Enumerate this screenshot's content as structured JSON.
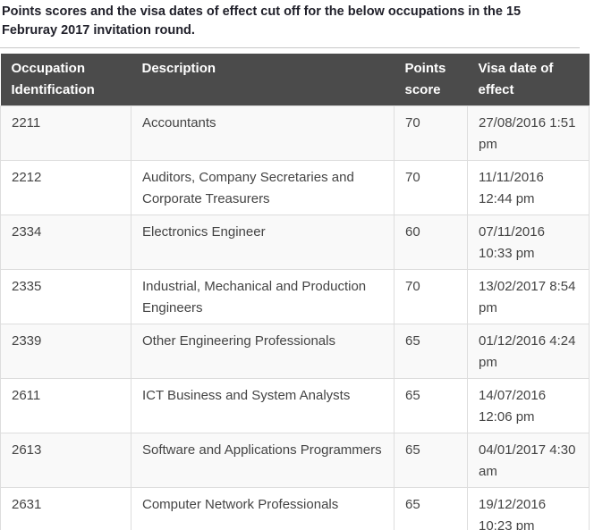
{
  "page": {
    "intro": "Points scores and the visa dates of effect cut off for the below occupations in the 15 Februray 2017 invitation round."
  },
  "table": {
    "columns": [
      {
        "label": "Occupation Identification"
      },
      {
        "label": "Description"
      },
      {
        "label": "Points score"
      },
      {
        "label": "Visa date of effect"
      }
    ],
    "rows": [
      {
        "occupation_id": "2211",
        "description": "Accountants",
        "points_score": "70",
        "visa_date_of_effect": "27/08/2016 1:51 pm"
      },
      {
        "occupation_id": "2212",
        "description": "Auditors, Company Secretaries and Corporate Treasurers",
        "points_score": "70",
        "visa_date_of_effect": "11/11/2016 12:44 pm"
      },
      {
        "occupation_id": "2334",
        "description": "Electronics Engineer",
        "points_score": "60",
        "visa_date_of_effect": "07/11/2016 10:33 pm"
      },
      {
        "occupation_id": "2335",
        "description": "Industrial, Mechanical and Production Engineers",
        "points_score": "70",
        "visa_date_of_effect": "13/02/2017 8:54 pm"
      },
      {
        "occupation_id": "2339",
        "description": "Other Engineering Professionals",
        "points_score": "65",
        "visa_date_of_effect": "01/12/2016 4:24 pm"
      },
      {
        "occupation_id": "2611",
        "description": "ICT Business and System Analysts",
        "points_score": "65",
        "visa_date_of_effect": "14/07/2016 12:06 pm"
      },
      {
        "occupation_id": "2613",
        "description": "Software and Applications Programmers",
        "points_score": "65",
        "visa_date_of_effect": "04/01/2017 4:30 am"
      },
      {
        "occupation_id": "2631",
        "description": "Computer Network Professionals",
        "points_score": "65",
        "visa_date_of_effect": "19/12/2016 10:23 pm"
      }
    ]
  },
  "colors": {
    "header_bg": "#4b4b4b",
    "header_text": "#ffffff",
    "row_stripe": "#f9f9f9",
    "border": "#dddddd",
    "body_text": "#444444",
    "title_text": "#21212b",
    "rule": "#c8c8c8"
  }
}
